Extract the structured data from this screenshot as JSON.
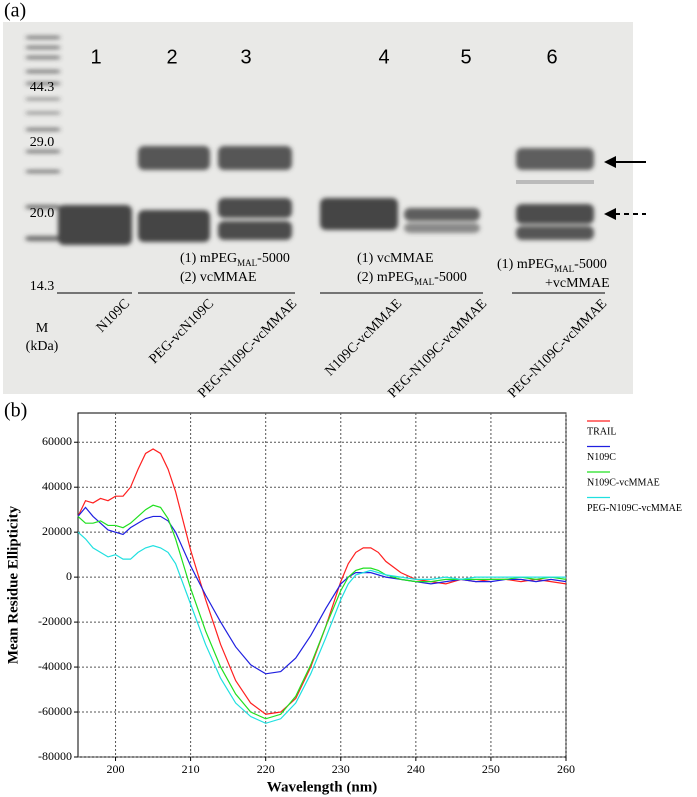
{
  "panels": [
    "(a)",
    "(b)"
  ],
  "gel": {
    "lanes": [
      "1",
      "2",
      "3",
      "4",
      "5",
      "6"
    ],
    "marker": {
      "sizes": [
        "44.3",
        "29.0",
        "20.0",
        "14.3"
      ],
      "label": "M",
      "unit": "(kDa)"
    },
    "samples": [
      "N109C",
      "PEG-vcN109C",
      "PEG-N109C-vcMMAE",
      "N109C-vcMMAE",
      "PEG-N109C-vcMMAE",
      "PEG-N109C-vcMMAE"
    ],
    "treatments": [
      [
        [
          "(1) mPEG",
          "MAL",
          "-5000"
        ],
        [
          "(2) vcMMAE"
        ]
      ],
      [
        [
          "(1) vcMMAE"
        ],
        [
          "(2) mPEG",
          "MAL",
          "-5000"
        ]
      ],
      [
        [
          "(1) mPEG",
          "MAL",
          "-5000"
        ],
        [
          "+vcMMAE"
        ]
      ]
    ]
  },
  "chart_data": {
    "type": "line",
    "xlabel": "Wavelength (nm)",
    "ylabel": "Mean Residue Ellipticity",
    "x": [
      195,
      196,
      197,
      198,
      199,
      200,
      201,
      202,
      203,
      204,
      205,
      206,
      207,
      208,
      210,
      212,
      214,
      216,
      218,
      220,
      222,
      224,
      226,
      228,
      230,
      231,
      232,
      233,
      234,
      235,
      236,
      238,
      240,
      242,
      244,
      246,
      248,
      250,
      252,
      254,
      256,
      258,
      260
    ],
    "series": [
      {
        "name": "TRAIL",
        "color": "#ff2020",
        "values": [
          27000,
          34000,
          33000,
          35000,
          34000,
          36000,
          36000,
          40000,
          48000,
          55000,
          57000,
          55000,
          48000,
          38000,
          12000,
          -10000,
          -30000,
          -46000,
          -56000,
          -61000,
          -60000,
          -54000,
          -40000,
          -22000,
          -2000,
          6000,
          11000,
          13000,
          13000,
          11000,
          7000,
          2000,
          -1000,
          -2000,
          -3000,
          -1000,
          -2000,
          -1000,
          -1000,
          -2000,
          -1000,
          -2000,
          -3000
        ]
      },
      {
        "name": "N109C",
        "color": "#2020e0",
        "values": [
          27000,
          31000,
          27000,
          24000,
          21000,
          20000,
          19000,
          22000,
          24000,
          26000,
          27000,
          27000,
          25000,
          20000,
          5000,
          -8000,
          -20000,
          -31000,
          -39000,
          -43000,
          -42000,
          -36000,
          -26000,
          -14000,
          -3000,
          0,
          2000,
          2000,
          2000,
          1000,
          0,
          -1000,
          -2000,
          -3000,
          -2000,
          -1000,
          -2000,
          -2000,
          -1000,
          -1000,
          -2000,
          -1000,
          -2000
        ]
      },
      {
        "name": "N109C-vcMMAE",
        "color": "#20e020",
        "values": [
          27000,
          24000,
          24000,
          25000,
          23000,
          23000,
          22000,
          24000,
          27000,
          30000,
          32000,
          31000,
          26000,
          17000,
          -5000,
          -24000,
          -40000,
          -52000,
          -60000,
          -63000,
          -61000,
          -53000,
          -39000,
          -22000,
          -6000,
          0,
          3000,
          4000,
          4000,
          3000,
          1000,
          -1000,
          -2000,
          -2000,
          -1000,
          -1000,
          -1000,
          -1000,
          -1000,
          0,
          -1000,
          0,
          -1000
        ]
      },
      {
        "name": "PEG-N109C-vcMMAE",
        "color": "#20e0e0",
        "values": [
          20000,
          17000,
          13000,
          11000,
          9000,
          10000,
          8000,
          8000,
          11000,
          13000,
          14000,
          13000,
          11000,
          6000,
          -12000,
          -30000,
          -45000,
          -56000,
          -62000,
          -65000,
          -63000,
          -56000,
          -43000,
          -27000,
          -10000,
          -3000,
          1000,
          2000,
          3000,
          2000,
          1000,
          0,
          -1000,
          -1000,
          0,
          -1000,
          0,
          0,
          0,
          0,
          0,
          0,
          0
        ]
      }
    ],
    "xlim": [
      195,
      260
    ],
    "ylim": [
      -80000,
      73000
    ],
    "xticks": [
      200,
      210,
      220,
      230,
      240,
      250,
      260
    ],
    "yticks": [
      -80000,
      -60000,
      -40000,
      -20000,
      0,
      20000,
      40000,
      60000
    ],
    "grid": true,
    "legend": "right"
  }
}
